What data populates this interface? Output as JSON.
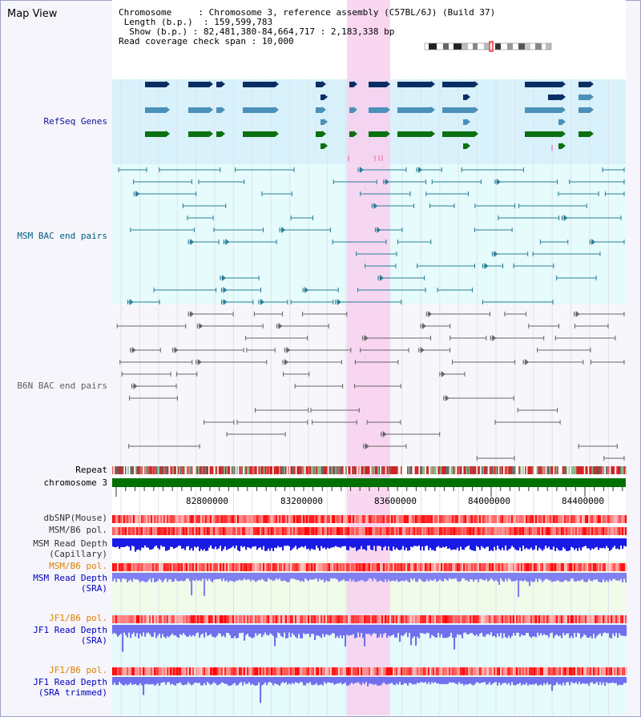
{
  "page": {
    "title": "Map View"
  },
  "info": {
    "chromosome_label": "Chromosome",
    "chromosome_value": "Chromosome 3, reference assembly (C57BL/6J) (Build 37)",
    "length_label": "Length (b.p.)",
    "length_value": "159,599,783",
    "show_label": "Show (b.p.)",
    "show_value": "82,481,380-84,664,717 : 2,183,338 bp",
    "coverage_label": "Read coverage check span",
    "coverage_value": "10,000"
  },
  "tracks": {
    "refseq": "RefSeq Genes",
    "msm_bac": "MSM BAC end pairs",
    "b6n_bac": "B6N BAC end pairs",
    "repeat": "Repeat",
    "chromosome": "chromosome 3",
    "dbsnp": "dbSNP(Mouse)",
    "msm_b6_pol_1": "MSM/B6 pol.",
    "msm_read_depth_cap_1": "MSM Read Depth",
    "msm_read_depth_cap_2": "(Capillary)",
    "msm_b6_pol_2": "MSM/B6 pol.",
    "msm_read_depth_sra_1": "MSM Read Depth",
    "msm_read_depth_sra_2": "(SRA)",
    "jf1_b6_pol_1": "JF1/B6 pol.",
    "jf1_read_depth_sra_1": "JF1 Read Depth",
    "jf1_read_depth_sra_2": "(SRA)",
    "jf1_b6_pol_2": "JF1/B6 pol.",
    "jf1_read_depth_trim_1": "JF1 Read Depth",
    "jf1_read_depth_trim_2": "(SRA trimmed)"
  },
  "axis": {
    "ticks": [
      "82800000",
      "83200000",
      "83600000",
      "84000000",
      "84400000"
    ]
  },
  "colors": {
    "refseq_bg": "#d9f1fb",
    "msm_bg": "#e6fbfb",
    "b6n_bg": "#f7f7fb",
    "highlight": "#f8d0ee",
    "refseq_label": "#1010a0",
    "msm_label": "#006080",
    "b6n_label": "#606060",
    "pol_label": "#e08000",
    "depth_label": "#0000c0",
    "gene_navy": "#0a2e64",
    "gene_steel": "#4a90b8",
    "gene_green": "#0a7010",
    "chrom_green": "#007000"
  }
}
